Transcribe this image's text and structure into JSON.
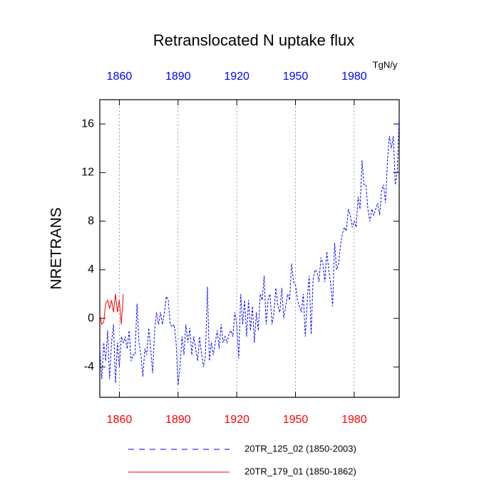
{
  "chart_data": {
    "type": "line",
    "title": "Retranslocated N uptake flux",
    "ylabel": "NRETRANS",
    "units": "TgN/y",
    "xlim": [
      1850,
      2003
    ],
    "xticks": [
      1860,
      1890,
      1920,
      1950,
      1980
    ],
    "ylim": [
      -6.5,
      18
    ],
    "yticks": [
      -4,
      0,
      4,
      8,
      12,
      16
    ],
    "grid": true,
    "legend": "bottom",
    "series": [
      {
        "name": "20TR_125_02 (1850-2003)",
        "color": "#0000ff",
        "dash": true,
        "x": [
          1850,
          1851,
          1852,
          1853,
          1854,
          1855,
          1856,
          1857,
          1858,
          1859,
          1860,
          1861,
          1862,
          1863,
          1864,
          1865,
          1866,
          1867,
          1868,
          1869,
          1870,
          1871,
          1872,
          1873,
          1874,
          1875,
          1876,
          1877,
          1878,
          1879,
          1880,
          1881,
          1882,
          1883,
          1884,
          1885,
          1886,
          1887,
          1888,
          1889,
          1890,
          1891,
          1892,
          1893,
          1894,
          1895,
          1896,
          1897,
          1898,
          1899,
          1900,
          1901,
          1902,
          1903,
          1904,
          1905,
          1906,
          1907,
          1908,
          1909,
          1910,
          1911,
          1912,
          1913,
          1914,
          1915,
          1916,
          1917,
          1918,
          1919,
          1920,
          1921,
          1922,
          1923,
          1924,
          1925,
          1926,
          1927,
          1928,
          1929,
          1930,
          1931,
          1932,
          1933,
          1934,
          1935,
          1936,
          1937,
          1938,
          1939,
          1940,
          1941,
          1942,
          1943,
          1944,
          1945,
          1946,
          1947,
          1948,
          1949,
          1950,
          1951,
          1952,
          1953,
          1954,
          1955,
          1956,
          1957,
          1958,
          1959,
          1960,
          1961,
          1962,
          1963,
          1964,
          1965,
          1966,
          1967,
          1968,
          1969,
          1970,
          1971,
          1972,
          1973,
          1974,
          1975,
          1976,
          1977,
          1978,
          1979,
          1980,
          1981,
          1982,
          1983,
          1984,
          1985,
          1986,
          1987,
          1988,
          1989,
          1990,
          1991,
          1992,
          1993,
          1994,
          1995,
          1996,
          1997,
          1998,
          1999,
          2000,
          2001,
          2002,
          2003
        ],
        "values": [
          -2.5,
          -5,
          -2,
          -3.5,
          -1,
          -5,
          -2,
          -0.5,
          -5.3,
          -2,
          -4,
          -1.5,
          -2,
          -1.5,
          -2.5,
          -1,
          -3.5,
          -3,
          -3,
          1.2,
          -2,
          -3,
          -4.8,
          -2.5,
          -3,
          -0.8,
          -2.5,
          -4.5,
          -1,
          0.5,
          -0.5,
          0.5,
          -0.5,
          0.5,
          1.8,
          1.5,
          -0.5,
          -0.7,
          -0.5,
          -2,
          -5.5,
          -4,
          -1.5,
          -3,
          -0.5,
          -2,
          -0.8,
          -3,
          -1.5,
          -2.5,
          -3.5,
          -1.5,
          -3,
          -4,
          -3,
          2.6,
          -3.5,
          -2,
          -3,
          -2,
          -1,
          -2.5,
          -0.5,
          -2,
          -1.5,
          -2,
          -1.3,
          -1,
          -1.5,
          0.5,
          -0.5,
          -3.3,
          2,
          -0.5,
          1.5,
          -1.5,
          1.5,
          -1,
          1,
          -2,
          0.5,
          -1,
          2,
          1.5,
          3.5,
          -0.5,
          1.5,
          2,
          -0.5,
          0.5,
          2.5,
          1,
          0.5,
          2.5,
          0,
          1,
          2,
          1.5,
          4.5,
          3,
          2.8,
          1.5,
          1,
          0.5,
          2,
          -1.5,
          1.5,
          3.5,
          -1.3,
          3.2,
          4,
          3.8,
          3,
          5,
          4.5,
          3,
          5.5,
          4,
          2.8,
          1,
          6.2,
          4,
          4.5,
          6,
          7,
          7.5,
          7.2,
          9,
          8.5,
          7.5,
          8,
          7.5,
          10,
          9,
          13,
          11,
          11,
          9,
          8,
          9,
          8.5,
          9,
          9.5,
          8.5,
          10.5,
          11,
          9.5,
          13,
          15,
          14,
          15,
          11,
          12,
          16.5
        ]
      },
      {
        "name": "20TR_179_01 (1850-1862)",
        "color": "#ff0000",
        "dash": false,
        "x": [
          1850,
          1851,
          1852,
          1853,
          1854,
          1855,
          1856,
          1857,
          1858,
          1859,
          1860,
          1861,
          1862
        ],
        "values": [
          0.3,
          -0.5,
          -0.3,
          1.2,
          1.5,
          0.8,
          1.5,
          0.5,
          2,
          0.5,
          1.5,
          -0.5,
          2
        ]
      }
    ]
  }
}
